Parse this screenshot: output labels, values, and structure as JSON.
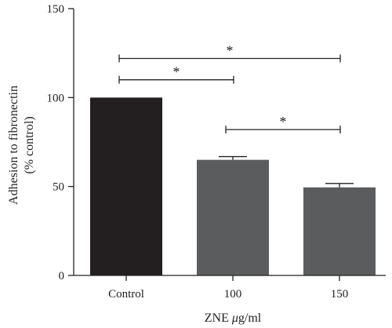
{
  "chart_data": {
    "type": "bar",
    "categories": [
      "Control",
      "100",
      "150"
    ],
    "values": [
      100,
      65,
      49.5
    ],
    "errors": [
      0,
      1.8,
      2.2
    ],
    "bar_colors": [
      "#231f20",
      "#5b5c5e",
      "#5b5c5e"
    ],
    "xlabel_parts": [
      "ZNE ",
      "μ",
      "g/ml"
    ],
    "ylabel_lines": [
      "Adhesion to fibronectin",
      "(% control)"
    ],
    "ylim": [
      0,
      150
    ],
    "yticks": [
      0,
      50,
      100,
      150
    ],
    "significance": [
      {
        "from": 0,
        "to": 1,
        "y": 110,
        "label": "*"
      },
      {
        "from": 0,
        "to": 2,
        "y": 122,
        "label": "*"
      },
      {
        "from": 1,
        "to": 2,
        "y": 82,
        "label": "*"
      }
    ],
    "grid": false,
    "legend": "none"
  }
}
